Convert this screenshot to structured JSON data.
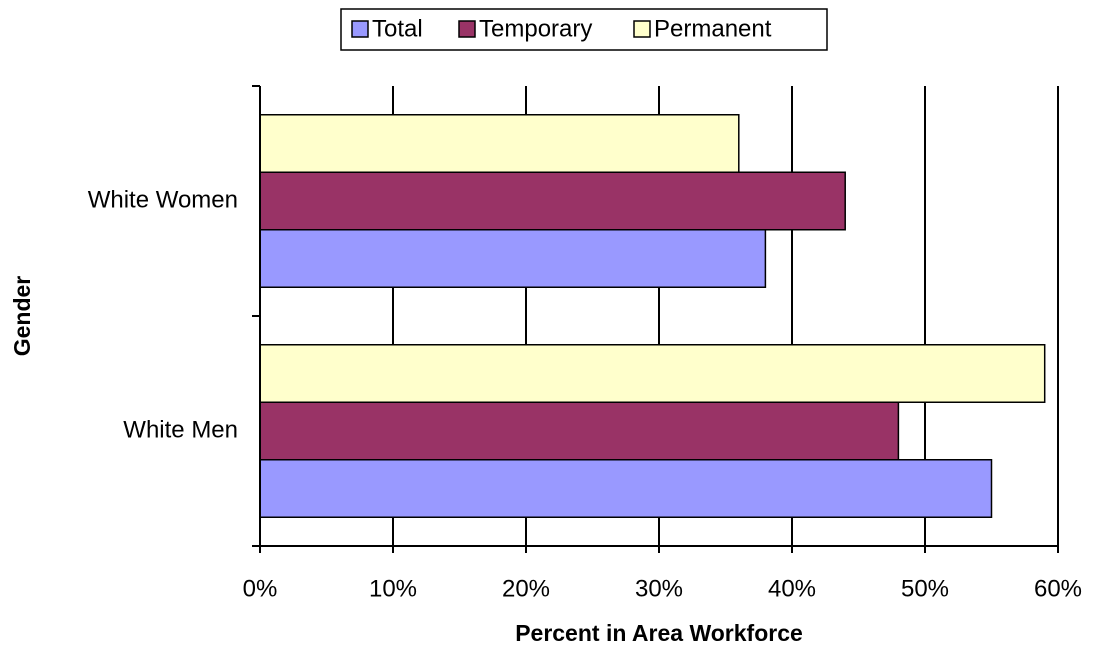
{
  "chart_data": {
    "type": "bar",
    "orientation": "horizontal",
    "x_label": "Percent in Area Workforce",
    "y_label": "Gender",
    "categories": [
      "White Women",
      "White Men"
    ],
    "series": [
      {
        "name": "Total",
        "color": "#9999ff",
        "values": [
          38,
          55
        ]
      },
      {
        "name": "Temporary",
        "color": "#993366",
        "values": [
          44,
          48
        ]
      },
      {
        "name": "Permanent",
        "color": "#ffffcc",
        "values": [
          36,
          59
        ]
      }
    ],
    "xlim": [
      0,
      60
    ],
    "xticks": [
      {
        "value": 0,
        "label": "0%"
      },
      {
        "value": 10,
        "label": "10%"
      },
      {
        "value": 20,
        "label": "20%"
      },
      {
        "value": 30,
        "label": "30%"
      },
      {
        "value": 40,
        "label": "40%"
      },
      {
        "value": 50,
        "label": "50%"
      },
      {
        "value": 60,
        "label": "60%"
      }
    ],
    "grid": true,
    "legend": "top"
  }
}
